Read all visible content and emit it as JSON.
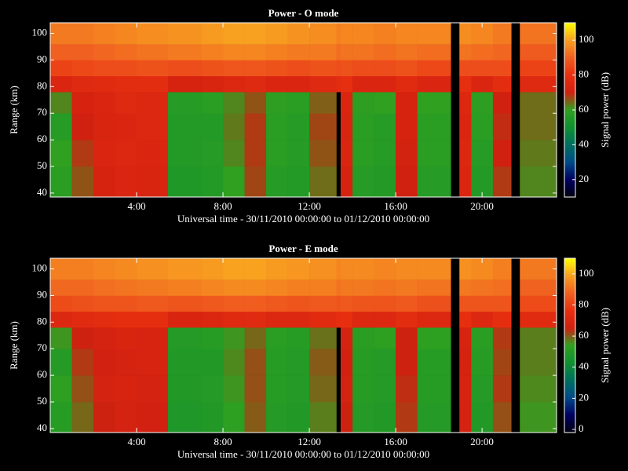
{
  "chart_data": [
    {
      "type": "heatmap",
      "title": "Power - O mode",
      "xlabel": "Universal time - 30/11/2010 00:00:00 to 01/12/2010 00:00:00",
      "ylabel": "Range (km)",
      "colorbar_label": "Signal power (dB)",
      "xlim": [
        0,
        23.45
      ],
      "ylim": [
        38.5,
        104
      ],
      "clim": [
        10,
        110
      ],
      "xticks": [
        {
          "value": 4,
          "label": "4:00"
        },
        {
          "value": 8,
          "label": "8:00"
        },
        {
          "value": 12,
          "label": "12:00"
        },
        {
          "value": 16,
          "label": "16:00"
        },
        {
          "value": 20,
          "label": "20:00"
        }
      ],
      "yticks": [
        40,
        50,
        60,
        70,
        80,
        90,
        100
      ],
      "cticks": [
        20,
        40,
        60,
        80,
        100
      ],
      "colorscale": [
        "#000010",
        "#000060",
        "#004a88",
        "#007060",
        "#109030",
        "#30a020",
        "#d02010",
        "#e83010",
        "#f06020",
        "#f8a020",
        "#ffff00"
      ],
      "xbins": [
        0,
        1,
        2,
        3,
        4,
        5.45,
        7,
        8,
        9,
        10,
        11,
        12,
        13.25,
        13.45,
        14,
        15,
        16,
        17,
        18.55,
        18.95,
        19.5,
        20.5,
        21.35,
        21.75,
        23.45
      ],
      "ybins": [
        38.5,
        50,
        60,
        70,
        78,
        84,
        90,
        96,
        104
      ],
      "values": [
        [
          58,
          66,
          72,
          74,
          73,
          55,
          56,
          60,
          67,
          57,
          56,
          64,
          null,
          72,
          57,
          56,
          70,
          57,
          null,
          74,
          56,
          68,
          null,
          62
        ],
        [
          60,
          68,
          74,
          75,
          74,
          56,
          57,
          62,
          68,
          58,
          57,
          66,
          null,
          74,
          58,
          57,
          71,
          58,
          null,
          75,
          57,
          70,
          null,
          63
        ],
        [
          57,
          70,
          73,
          74,
          75,
          56,
          56,
          63,
          68,
          58,
          57,
          67,
          null,
          73,
          58,
          57,
          72,
          58,
          null,
          74,
          58,
          69,
          null,
          64
        ],
        [
          62,
          72,
          74,
          76,
          75,
          57,
          58,
          62,
          66,
          59,
          58,
          65,
          null,
          74,
          59,
          60,
          72,
          60,
          null,
          75,
          59,
          70,
          null,
          64
        ],
        [
          74,
          76,
          77,
          78,
          78,
          72,
          73,
          75,
          76,
          74,
          74,
          76,
          78,
          79,
          74,
          74,
          77,
          74,
          null,
          79,
          74,
          78,
          null,
          76
        ],
        [
          84,
          85,
          86,
          86,
          87,
          86,
          87,
          88,
          88,
          87,
          86,
          87,
          86,
          87,
          86,
          86,
          87,
          85,
          null,
          86,
          86,
          86,
          null,
          84
        ],
        [
          90,
          90,
          91,
          92,
          93,
          94,
          95,
          96,
          96,
          95,
          94,
          94,
          92,
          93,
          93,
          92,
          93,
          92,
          null,
          93,
          92,
          91,
          null,
          89
        ],
        [
          94,
          94,
          95,
          96,
          97,
          98,
          99,
          100,
          100,
          99,
          98,
          97,
          95,
          96,
          96,
          95,
          96,
          96,
          null,
          97,
          96,
          94,
          null,
          93
        ]
      ]
    },
    {
      "type": "heatmap",
      "title": "Power - E mode",
      "xlabel": "Universal time - 30/11/2010 00:00:00 to 01/12/2010 00:00:00",
      "ylabel": "Range (km)",
      "colorbar_label": "Signal power (dB)",
      "xlim": [
        0,
        23.45
      ],
      "ylim": [
        38.5,
        104
      ],
      "clim": [
        -2,
        110
      ],
      "xticks": [
        {
          "value": 4,
          "label": "4:00"
        },
        {
          "value": 8,
          "label": "8:00"
        },
        {
          "value": 12,
          "label": "12:00"
        },
        {
          "value": 16,
          "label": "16:00"
        },
        {
          "value": 20,
          "label": "20:00"
        }
      ],
      "yticks": [
        40,
        50,
        60,
        70,
        80,
        90,
        100
      ],
      "cticks": [
        0,
        20,
        40,
        60,
        80,
        100
      ],
      "colorscale": [
        "#000010",
        "#000060",
        "#004a88",
        "#007060",
        "#109030",
        "#30a020",
        "#d02010",
        "#e83010",
        "#f06020",
        "#f8a020",
        "#ffff00"
      ],
      "xbins": [
        0,
        1,
        2,
        3,
        4,
        5.45,
        7,
        8,
        9,
        10,
        11,
        12,
        13.25,
        13.45,
        14,
        15,
        16,
        17,
        18.55,
        18.95,
        19.5,
        20.5,
        21.35,
        21.75,
        23.45
      ],
      "ybins": [
        38.5,
        50,
        60,
        70,
        78,
        84,
        90,
        96,
        104
      ],
      "values": [
        [
          51,
          59,
          65,
          67,
          66,
          48,
          49,
          53,
          60,
          50,
          49,
          57,
          null,
          65,
          50,
          49,
          63,
          50,
          null,
          67,
          49,
          61,
          null,
          55
        ],
        [
          53,
          61,
          67,
          68,
          67,
          49,
          50,
          55,
          61,
          51,
          50,
          59,
          null,
          67,
          51,
          50,
          64,
          51,
          null,
          68,
          50,
          63,
          null,
          56
        ],
        [
          50,
          63,
          66,
          67,
          68,
          49,
          49,
          56,
          61,
          51,
          50,
          60,
          null,
          66,
          51,
          50,
          65,
          51,
          null,
          67,
          51,
          62,
          null,
          57
        ],
        [
          55,
          65,
          67,
          69,
          68,
          50,
          51,
          55,
          59,
          52,
          51,
          58,
          null,
          67,
          52,
          53,
          65,
          53,
          null,
          68,
          52,
          63,
          null,
          57
        ],
        [
          71,
          73,
          74,
          75,
          75,
          69,
          70,
          72,
          73,
          71,
          71,
          73,
          75,
          76,
          71,
          71,
          74,
          71,
          null,
          76,
          71,
          75,
          null,
          73
        ],
        [
          83,
          84,
          85,
          85,
          86,
          85,
          86,
          87,
          87,
          86,
          85,
          86,
          85,
          86,
          85,
          85,
          86,
          84,
          null,
          85,
          85,
          85,
          null,
          83
        ],
        [
          89,
          89,
          90,
          91,
          92,
          93,
          94,
          95,
          95,
          94,
          93,
          93,
          91,
          92,
          92,
          91,
          92,
          91,
          null,
          92,
          91,
          90,
          null,
          88
        ],
        [
          93,
          93,
          94,
          95,
          96,
          97,
          98,
          99,
          99,
          98,
          97,
          96,
          94,
          95,
          95,
          94,
          95,
          95,
          null,
          96,
          95,
          93,
          null,
          92
        ]
      ]
    }
  ]
}
